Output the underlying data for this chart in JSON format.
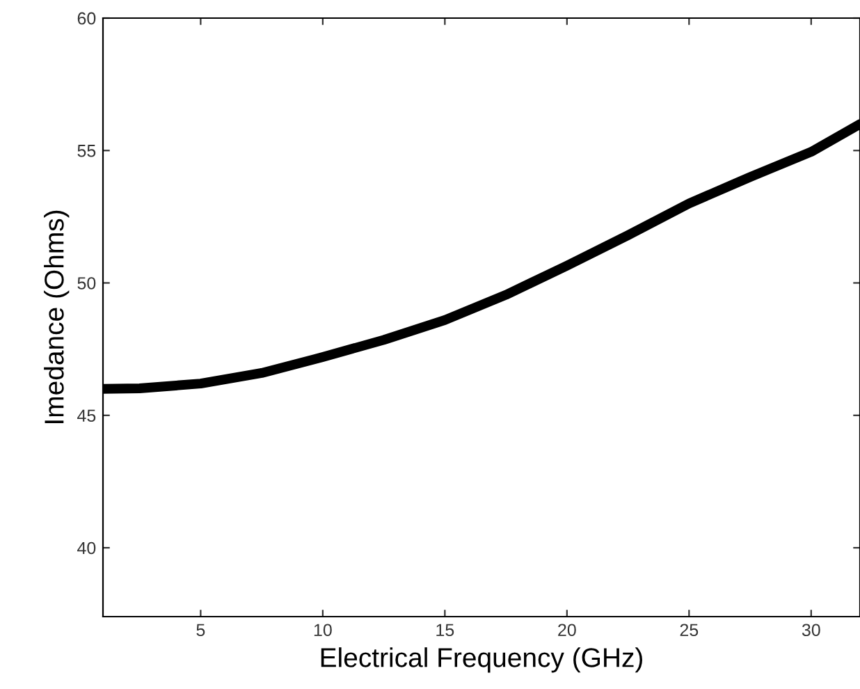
{
  "chart_data": {
    "type": "line",
    "xlabel": "Electrical Frequency (GHz)",
    "ylabel": "Imedance (Ohms)",
    "x": [
      1,
      2.5,
      5,
      7.5,
      10,
      12.5,
      15,
      17.5,
      20,
      22.5,
      25,
      27.5,
      30,
      32
    ],
    "series": [
      {
        "color": "#000000",
        "values": [
          46.0,
          46.02,
          46.2,
          46.6,
          47.2,
          47.85,
          48.6,
          49.55,
          50.65,
          51.8,
          53.0,
          54.0,
          54.95,
          56.0
        ]
      }
    ],
    "xlim": [
      1,
      32
    ],
    "ylim": [
      37.4,
      60
    ],
    "xticks": [
      5,
      10,
      15,
      20,
      25,
      30
    ],
    "yticks": [
      40,
      45,
      50,
      55,
      60
    ],
    "grid": false,
    "legend": false,
    "marker": "none",
    "line_style": "solid"
  }
}
